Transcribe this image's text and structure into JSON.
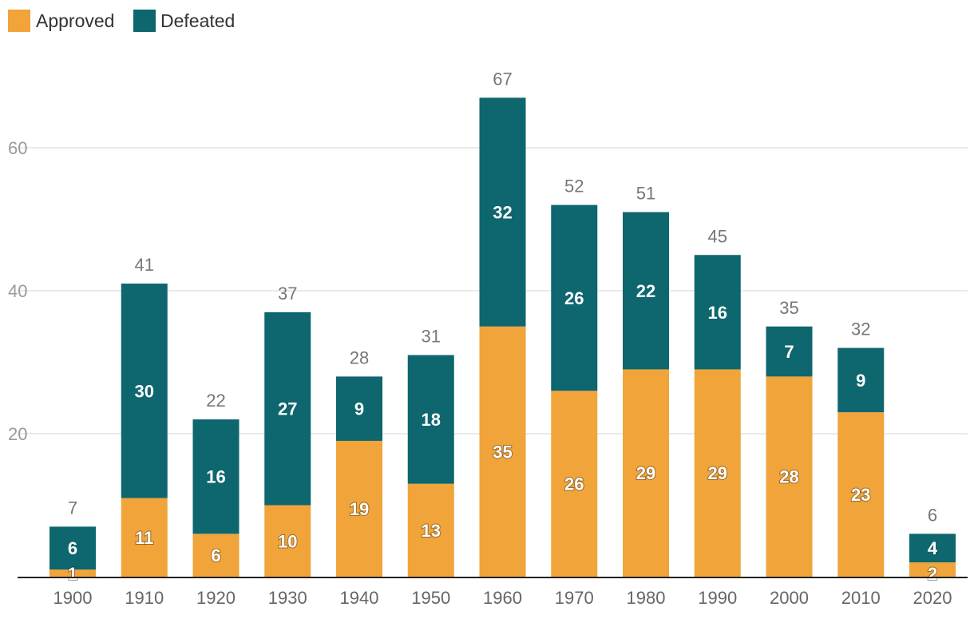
{
  "chart_data": {
    "type": "bar",
    "stacked": true,
    "title": "",
    "xlabel": "",
    "ylabel": "",
    "ylim": [
      0,
      75
    ],
    "yticks": [
      20,
      40,
      60
    ],
    "grid": true,
    "legend_position": "top-left",
    "categories": [
      "1900",
      "1910",
      "1920",
      "1930",
      "1940",
      "1950",
      "1960",
      "1970",
      "1980",
      "1990",
      "2000",
      "2010",
      "2020"
    ],
    "series": [
      {
        "name": "Approved",
        "color": "#f0a43a",
        "values": [
          1,
          11,
          6,
          10,
          19,
          13,
          35,
          26,
          29,
          29,
          28,
          23,
          2
        ]
      },
      {
        "name": "Defeated",
        "color": "#0e666e",
        "values": [
          6,
          30,
          16,
          27,
          9,
          18,
          32,
          26,
          22,
          16,
          7,
          9,
          4
        ]
      }
    ],
    "totals": [
      7,
      41,
      22,
      37,
      28,
      31,
      67,
      52,
      51,
      45,
      35,
      32,
      6
    ]
  },
  "colors": {
    "gridline": "#e3e3e3",
    "axis": "#222222"
  }
}
